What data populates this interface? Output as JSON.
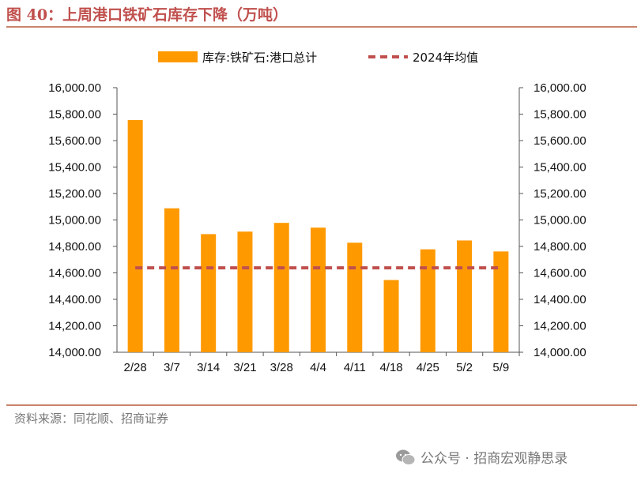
{
  "figure": {
    "title": "图 40：上周港口铁矿石库存下降（万吨）",
    "source": "资料来源：同花顺、招商证券",
    "watermark": "公众号 · 招商宏观静思录"
  },
  "colors": {
    "bar": "#ff9900",
    "avg_line": "#c0504d",
    "rule": "#c8846a",
    "title": "#c0504d"
  },
  "chart_data": {
    "type": "bar",
    "categories": [
      "2/28",
      "3/7",
      "3/14",
      "3/21",
      "3/28",
      "4/4",
      "4/11",
      "4/18",
      "4/25",
      "5/2",
      "5/9"
    ],
    "series": [
      {
        "name": "库存:铁矿石:港口总计",
        "type": "bar",
        "values": [
          15755,
          15088,
          14893,
          14912,
          14978,
          14942,
          14828,
          14546,
          14778,
          14845,
          14762
        ]
      },
      {
        "name": "2024年均值",
        "type": "line",
        "style": "dashed",
        "values": [
          14638,
          14638,
          14638,
          14638,
          14638,
          14638,
          14638,
          14638,
          14638,
          14638,
          14638
        ]
      }
    ],
    "ylim": [
      14000,
      16000
    ],
    "ytick_step": 200,
    "ytick_labels": [
      "14,000.00",
      "14,200.00",
      "14,400.00",
      "14,600.00",
      "14,800.00",
      "15,000.00",
      "15,200.00",
      "15,400.00",
      "15,600.00",
      "15,800.00",
      "16,000.00"
    ],
    "left_axis": true,
    "right_axis": true,
    "grid": false,
    "legend": "top-center"
  }
}
